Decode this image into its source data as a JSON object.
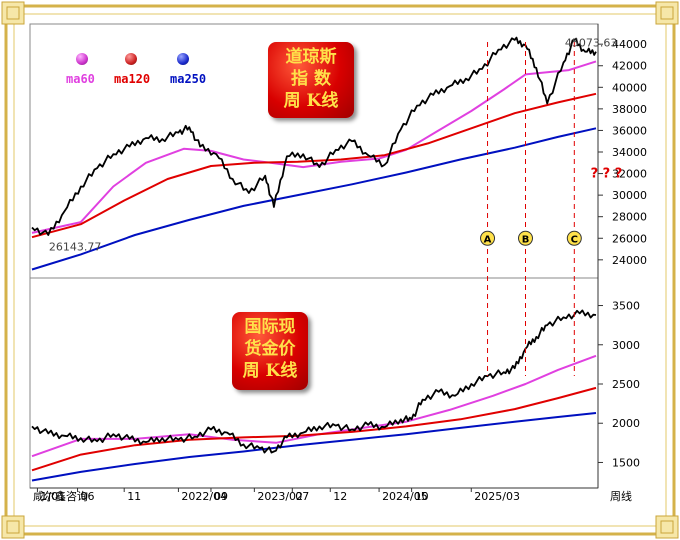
{
  "chart_data": [
    {
      "type": "line",
      "title": "",
      "ylim": [
        22500,
        45500
      ],
      "y_ticks": [
        "44000",
        "42000",
        "40000",
        "38000",
        "36000",
        "34000",
        "32000",
        "30000",
        "28000",
        "26000",
        "24000"
      ],
      "series": [
        {
          "name": "",
          "color": "#000000",
          "x": [
            2020.55,
            2020.7,
            2020.85,
            2021.0,
            2021.15,
            2021.3,
            2021.45,
            2021.6,
            2021.75,
            2021.9,
            2022.0,
            2022.1,
            2022.25,
            2022.4,
            2022.55,
            2022.7,
            2022.78,
            2022.9,
            2023.05,
            2023.2,
            2023.35,
            2023.5,
            2023.65,
            2023.8,
            2023.95,
            2024.1,
            2024.25,
            2024.4,
            2024.55,
            2024.7,
            2024.85,
            2025.0,
            2025.1,
            2025.2,
            2025.3,
            2025.45,
            2025.55,
            2025.65,
            2025.75
          ],
          "values": [
            27000,
            26300,
            28500,
            30800,
            32500,
            33800,
            34500,
            35300,
            35200,
            35800,
            36300,
            34500,
            33800,
            31500,
            30200,
            31800,
            28900,
            33600,
            33800,
            32600,
            34200,
            35000,
            33700,
            32800,
            36100,
            38300,
            39300,
            40100,
            40800,
            41700,
            43500,
            44400,
            43900,
            41800,
            38500,
            42300,
            44400,
            43300,
            43300
          ]
        },
        {
          "name": "ma60",
          "color": "#e040e0",
          "x": [
            2020.55,
            2021.0,
            2021.3,
            2021.6,
            2021.95,
            2022.2,
            2022.5,
            2022.75,
            2023.05,
            2023.4,
            2023.75,
            2024.0,
            2024.3,
            2024.6,
            2024.9,
            2025.1,
            2025.3,
            2025.5,
            2025.75
          ],
          "values": [
            26500,
            27500,
            30800,
            33000,
            34300,
            34100,
            33300,
            33000,
            32600,
            33100,
            33400,
            34200,
            36000,
            37800,
            39800,
            41200,
            41400,
            41600,
            42400
          ]
        },
        {
          "name": "ma120",
          "color": "#e00000",
          "x": [
            2020.55,
            2021.0,
            2021.4,
            2021.8,
            2022.2,
            2022.6,
            2023.0,
            2023.4,
            2023.8,
            2024.2,
            2024.6,
            2025.0,
            2025.4,
            2025.75
          ],
          "values": [
            26100,
            27300,
            29500,
            31500,
            32700,
            33000,
            33100,
            33300,
            33700,
            34800,
            36200,
            37600,
            38600,
            39400
          ]
        },
        {
          "name": "ma250",
          "color": "#0010c0",
          "x": [
            2020.55,
            2021.0,
            2021.5,
            2022.0,
            2022.5,
            2023.0,
            2023.5,
            2024.0,
            2024.5,
            2025.0,
            2025.4,
            2025.75
          ],
          "values": [
            23100,
            24500,
            26300,
            27700,
            29000,
            30000,
            31000,
            32100,
            33300,
            34400,
            35400,
            36200
          ]
        }
      ],
      "annotations": [
        {
          "text": "26143.77",
          "x": 2020.65,
          "y": 26143.77
        },
        {
          "text": "45073.63",
          "x": 2025.5,
          "y": 45073.63
        },
        {
          "text": "? ? ?",
          "x": 2025.7,
          "y": 32000,
          "color": "#e00000"
        },
        {
          "text": "A",
          "x": 2024.75,
          "y": 26000
        },
        {
          "text": "B",
          "x": 2025.1,
          "y": 26000
        },
        {
          "text": "C",
          "x": 2025.55,
          "y": 26000
        }
      ]
    },
    {
      "type": "line",
      "title": "",
      "ylim": [
        1200,
        3800
      ],
      "y_ticks": [
        "3500",
        "3000",
        "2500",
        "2000",
        "1500"
      ],
      "series": [
        {
          "name": "",
          "color": "#000000",
          "x": [
            2020.55,
            2020.7,
            2020.85,
            2021.0,
            2021.15,
            2021.3,
            2021.45,
            2021.6,
            2021.75,
            2021.9,
            2022.05,
            2022.2,
            2022.35,
            2022.5,
            2022.65,
            2022.78,
            2022.9,
            2023.05,
            2023.2,
            2023.35,
            2023.5,
            2023.65,
            2023.8,
            2023.95,
            2024.05,
            2024.15,
            2024.3,
            2024.45,
            2024.6,
            2024.75,
            2024.9,
            2025.0,
            2025.1,
            2025.2,
            2025.3,
            2025.45,
            2025.6,
            2025.75
          ],
          "values": [
            1960,
            1870,
            1840,
            1810,
            1770,
            1860,
            1800,
            1760,
            1810,
            1790,
            1830,
            1920,
            1880,
            1730,
            1680,
            1640,
            1820,
            1880,
            1960,
            1970,
            1920,
            1980,
            1950,
            2050,
            2050,
            2300,
            2400,
            2350,
            2500,
            2600,
            2650,
            2700,
            2950,
            3100,
            3250,
            3350,
            3400,
            3380
          ]
        },
        {
          "name": "",
          "color": "#e040e0",
          "x": [
            2020.55,
            2021.0,
            2021.5,
            2022.0,
            2022.4,
            2022.8,
            2023.2,
            2023.6,
            2024.0,
            2024.4,
            2024.8,
            2025.1,
            2025.4,
            2025.75
          ],
          "values": [
            1580,
            1800,
            1800,
            1860,
            1790,
            1750,
            1860,
            1940,
            2020,
            2170,
            2350,
            2500,
            2680,
            2860
          ]
        },
        {
          "name": "",
          "color": "#e00000",
          "x": [
            2020.55,
            2021.0,
            2021.5,
            2022.0,
            2022.5,
            2023.0,
            2023.5,
            2024.0,
            2024.5,
            2025.0,
            2025.4,
            2025.75
          ],
          "values": [
            1400,
            1600,
            1720,
            1790,
            1820,
            1840,
            1890,
            1960,
            2050,
            2180,
            2320,
            2450
          ]
        },
        {
          "name": "",
          "color": "#0010c0",
          "x": [
            2020.55,
            2021.0,
            2021.5,
            2022.0,
            2022.5,
            2023.0,
            2023.5,
            2024.0,
            2024.5,
            2025.0,
            2025.4,
            2025.75
          ],
          "values": [
            1270,
            1380,
            1480,
            1570,
            1640,
            1720,
            1790,
            1860,
            1940,
            2020,
            2080,
            2130
          ]
        }
      ]
    }
  ],
  "x_axis_labels": [
    {
      "text": "1/01",
      "x": 2020.6
    },
    {
      "text": "06",
      "x": 2020.97
    },
    {
      "text": "11",
      "x": 2021.4
    },
    {
      "text": "2022/04",
      "x": 2021.9
    },
    {
      "text": "09",
      "x": 2022.2
    },
    {
      "text": "2023/02",
      "x": 2022.6
    },
    {
      "text": "07",
      "x": 2022.95
    },
    {
      "text": "12",
      "x": 2023.3
    },
    {
      "text": "2024/05",
      "x": 2023.75
    },
    {
      "text": "10",
      "x": 2024.05
    },
    {
      "text": "2025/03",
      "x": 2024.6
    }
  ],
  "footer_left": "咸尔鑫咨询",
  "footer_right": "周线",
  "badge_top": [
    "道琼斯",
    "指 数",
    "周 K线"
  ],
  "badge_bottom": [
    "国际现",
    "货金价",
    "周 K线"
  ],
  "legend": [
    {
      "label": "ma60",
      "color": "#e040e0",
      "dot": "#cc33cc"
    },
    {
      "label": "ma120",
      "color": "#e00000",
      "dot": "#cc2222"
    },
    {
      "label": "ma250",
      "color": "#0010c0",
      "dot": "#1a2acc"
    }
  ]
}
